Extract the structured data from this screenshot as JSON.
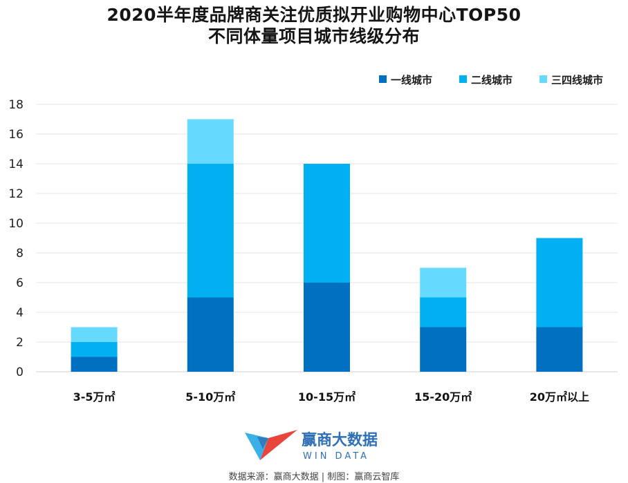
{
  "header": {
    "title_line1": "2020半年度品牌商关注优质拟开业购物中心TOP50",
    "title_line2": "不同体量项目城市线级分布"
  },
  "chart_data": {
    "type": "bar",
    "stacked": true,
    "categories": [
      "3-5万㎡",
      "5-10万㎡",
      "10-15万㎡",
      "15-20万㎡",
      "20万㎡以上"
    ],
    "series": [
      {
        "name": "一线城市",
        "values": [
          1,
          5,
          6,
          3,
          3
        ],
        "color": "#0070c0"
      },
      {
        "name": "二线城市",
        "values": [
          1,
          9,
          8,
          2,
          6
        ],
        "color": "#00b0f0"
      },
      {
        "name": "三四线城市",
        "values": [
          1,
          3,
          0,
          2,
          0
        ],
        "color": "#66d9ff"
      }
    ],
    "ylim": [
      0,
      18
    ],
    "yticks": [
      0,
      2,
      4,
      6,
      8,
      10,
      12,
      14,
      16,
      18
    ],
    "grid": true,
    "legend_position": "top-right"
  },
  "logo": {
    "name_cn": "赢商大数据",
    "name_en": "WIN DATA",
    "colors": [
      "#e8453c",
      "#2f6fb5",
      "#3bb0e6"
    ]
  },
  "footer": {
    "source_text": "数据来源：赢商大数据 | 制图：赢商云智库"
  }
}
